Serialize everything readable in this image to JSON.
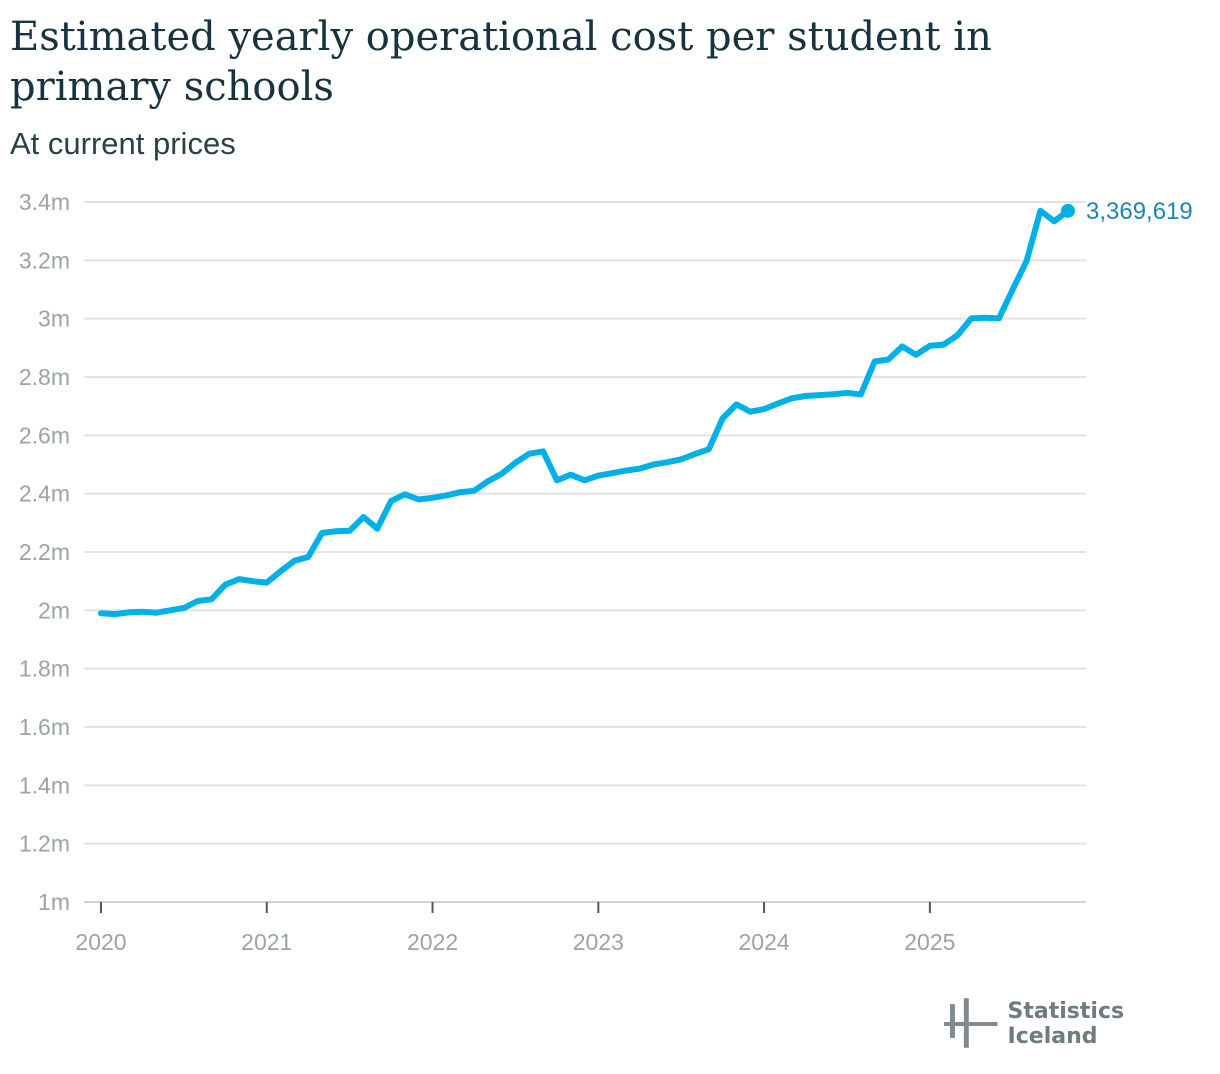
{
  "title": "Estimated yearly operational cost per student in primary schools",
  "subtitle": "At current prices",
  "brand": {
    "name": "Statistics Iceland",
    "logo_icon": "statistics-iceland-logo-icon"
  },
  "colors": {
    "line": "#00b0e6",
    "grid": "#e3e3e3",
    "tick_text": "#9aa3a7",
    "label": "#1b86b3",
    "title": "#16333f"
  },
  "chart_data": {
    "type": "line",
    "title": "Estimated yearly operational cost per student in primary schools",
    "subtitle": "At current prices",
    "xlabel": "",
    "ylabel": "",
    "ylim": [
      1000000,
      3400000
    ],
    "xlim": [
      "2020-01",
      "2025-11"
    ],
    "grid": true,
    "y_ticks": [
      {
        "value": 1000000,
        "label": "1m"
      },
      {
        "value": 1200000,
        "label": "1.2m"
      },
      {
        "value": 1400000,
        "label": "1.4m"
      },
      {
        "value": 1600000,
        "label": "1.6m"
      },
      {
        "value": 1800000,
        "label": "1.8m"
      },
      {
        "value": 2000000,
        "label": "2m"
      },
      {
        "value": 2200000,
        "label": "2.2m"
      },
      {
        "value": 2400000,
        "label": "2.4m"
      },
      {
        "value": 2600000,
        "label": "2.6m"
      },
      {
        "value": 2800000,
        "label": "2.8m"
      },
      {
        "value": 3000000,
        "label": "3m"
      },
      {
        "value": 3200000,
        "label": "3.2m"
      },
      {
        "value": 3400000,
        "label": "3.4m"
      }
    ],
    "x_ticks": [
      {
        "value": "2020-01",
        "label": "2020"
      },
      {
        "value": "2021-01",
        "label": "2021"
      },
      {
        "value": "2022-01",
        "label": "2022"
      },
      {
        "value": "2023-01",
        "label": "2023"
      },
      {
        "value": "2024-01",
        "label": "2024"
      },
      {
        "value": "2025-01",
        "label": "2025"
      }
    ],
    "end_label": "3,369,619",
    "series": [
      {
        "points": [
          [
            "2020-01",
            1990000
          ],
          [
            "2020-02",
            1987000
          ],
          [
            "2020-03",
            1993000
          ],
          [
            "2020-04",
            1995000
          ],
          [
            "2020-05",
            1992000
          ],
          [
            "2020-06",
            2000000
          ],
          [
            "2020-07",
            2008000
          ],
          [
            "2020-08",
            2032000
          ],
          [
            "2020-09",
            2038000
          ],
          [
            "2020-10",
            2088000
          ],
          [
            "2020-11",
            2107000
          ],
          [
            "2020-12",
            2100000
          ],
          [
            "2021-01",
            2095000
          ],
          [
            "2021-02",
            2134000
          ],
          [
            "2021-03",
            2170000
          ],
          [
            "2021-04",
            2183000
          ],
          [
            "2021-05",
            2265000
          ],
          [
            "2021-06",
            2271000
          ],
          [
            "2021-07",
            2273000
          ],
          [
            "2021-08",
            2320000
          ],
          [
            "2021-09",
            2280000
          ],
          [
            "2021-10",
            2375000
          ],
          [
            "2021-11",
            2398000
          ],
          [
            "2021-12",
            2380000
          ],
          [
            "2022-01",
            2386000
          ],
          [
            "2022-02",
            2394000
          ],
          [
            "2022-03",
            2405000
          ],
          [
            "2022-04",
            2410000
          ],
          [
            "2022-05",
            2442000
          ],
          [
            "2022-06",
            2468000
          ],
          [
            "2022-07",
            2506000
          ],
          [
            "2022-08",
            2537000
          ],
          [
            "2022-09",
            2545000
          ],
          [
            "2022-10",
            2446000
          ],
          [
            "2022-11",
            2465000
          ],
          [
            "2022-12",
            2446000
          ],
          [
            "2023-01",
            2462000
          ],
          [
            "2023-02",
            2470000
          ],
          [
            "2023-03",
            2479000
          ],
          [
            "2023-04",
            2486000
          ],
          [
            "2023-05",
            2500000
          ],
          [
            "2023-06",
            2508000
          ],
          [
            "2023-07",
            2518000
          ],
          [
            "2023-08",
            2536000
          ],
          [
            "2023-09",
            2552000
          ],
          [
            "2023-10",
            2658000
          ],
          [
            "2023-11",
            2706000
          ],
          [
            "2023-12",
            2681000
          ],
          [
            "2024-01",
            2690000
          ],
          [
            "2024-02",
            2709000
          ],
          [
            "2024-03",
            2727000
          ],
          [
            "2024-04",
            2735000
          ],
          [
            "2024-05",
            2738000
          ],
          [
            "2024-06",
            2741000
          ],
          [
            "2024-07",
            2746000
          ],
          [
            "2024-08",
            2740000
          ],
          [
            "2024-09",
            2853000
          ],
          [
            "2024-10",
            2860000
          ],
          [
            "2024-11",
            2905000
          ],
          [
            "2024-12",
            2876000
          ],
          [
            "2025-01",
            2907000
          ],
          [
            "2025-02",
            2911000
          ],
          [
            "2025-03",
            2943000
          ],
          [
            "2025-04",
            3001000
          ],
          [
            "2025-05",
            3003000
          ],
          [
            "2025-06",
            3001000
          ],
          [
            "2025-07",
            3100000
          ],
          [
            "2025-08",
            3198000
          ],
          [
            "2025-09",
            3370000
          ],
          [
            "2025-10",
            3334000
          ],
          [
            "2025-11",
            3369619
          ]
        ]
      }
    ]
  }
}
